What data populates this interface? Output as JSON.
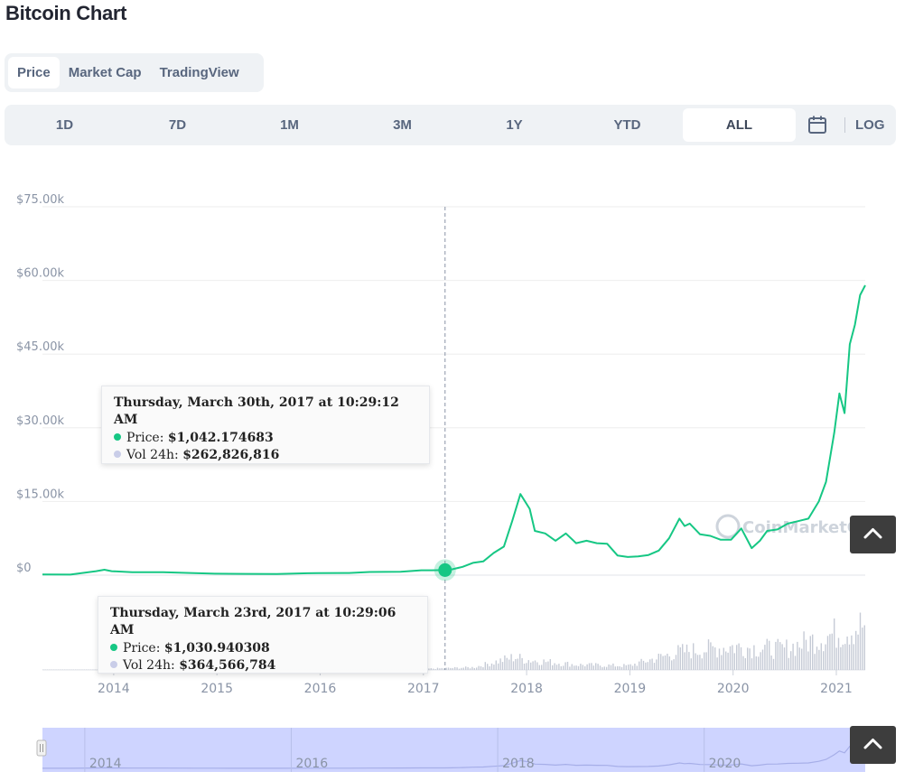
{
  "page": {
    "title": "Bitcoin Chart"
  },
  "chart_tabs": [
    {
      "label": "Price",
      "active": true
    },
    {
      "label": "Market Cap",
      "active": false
    },
    {
      "label": "TradingView",
      "active": false
    }
  ],
  "ranges": [
    {
      "label": "1D",
      "active": false
    },
    {
      "label": "7D",
      "active": false
    },
    {
      "label": "1M",
      "active": false
    },
    {
      "label": "3M",
      "active": false
    },
    {
      "label": "1Y",
      "active": false
    },
    {
      "label": "YTD",
      "active": false
    },
    {
      "label": "ALL",
      "active": true
    }
  ],
  "log_label": "LOG",
  "icons": {
    "calendar": "calendar-icon",
    "scroll_top": "chevron-up-icon",
    "navigator_handle": "navigator-handle-icon",
    "watermark": "coinmarketcap-logo-icon"
  },
  "colors": {
    "accent": "#16c784",
    "volume": "#c6cbd6",
    "navigator_fill": "#c5ccff",
    "grid": "#eeeeee"
  },
  "watermark": "CoinMarketCap",
  "tooltips": [
    {
      "title": "Thursday, March 30th, 2017 at 10:29:12 AM",
      "price_label": "Price:",
      "price": "$1,042.174683",
      "vol_label": "Vol 24h:",
      "vol": "$262,826,816"
    },
    {
      "title": "Thursday, March 23rd, 2017 at 10:29:06 AM",
      "price_label": "Price:",
      "price": "$1,030.940308",
      "vol_label": "Vol 24h:",
      "vol": "$364,566,784"
    }
  ],
  "chart_data": {
    "type": "line",
    "title": "Bitcoin Chart",
    "series": [
      {
        "name": "Price",
        "x": [
          2013.33,
          2013.6,
          2013.85,
          2013.93,
          2014.0,
          2014.2,
          2014.5,
          2014.8,
          2015.0,
          2015.3,
          2015.6,
          2015.9,
          2016.0,
          2016.3,
          2016.5,
          2016.8,
          2017.0,
          2017.1,
          2017.23,
          2017.3,
          2017.4,
          2017.5,
          2017.6,
          2017.7,
          2017.8,
          2017.88,
          2017.96,
          2018.05,
          2018.1,
          2018.2,
          2018.3,
          2018.4,
          2018.5,
          2018.6,
          2018.7,
          2018.8,
          2018.9,
          2019.0,
          2019.1,
          2019.2,
          2019.3,
          2019.4,
          2019.5,
          2019.55,
          2019.6,
          2019.7,
          2019.8,
          2019.9,
          2020.0,
          2020.1,
          2020.2,
          2020.28,
          2020.35,
          2020.45,
          2020.55,
          2020.65,
          2020.75,
          2020.85,
          2020.92,
          2021.0,
          2021.05,
          2021.1,
          2021.15,
          2021.2,
          2021.25,
          2021.3
        ],
        "values": [
          120,
          110,
          800,
          1100,
          800,
          600,
          580,
          400,
          300,
          260,
          240,
          380,
          430,
          450,
          650,
          700,
          1000,
          1000,
          1031,
          1200,
          1700,
          2500,
          2800,
          4500,
          5800,
          11000,
          16500,
          13500,
          9000,
          8500,
          7000,
          8500,
          6500,
          7000,
          6500,
          6400,
          4000,
          3700,
          3800,
          4100,
          5000,
          7500,
          11500,
          10000,
          10500,
          8300,
          8000,
          7200,
          7200,
          9500,
          5500,
          7000,
          9000,
          9300,
          10500,
          11000,
          11500,
          15000,
          19000,
          29000,
          37000,
          33000,
          47000,
          51000,
          57000,
          59000
        ],
        "color": "#16c784"
      },
      {
        "name": "Vol 24h",
        "note": "volume shown as relative bars under the price line",
        "x": [
          2017.0,
          2017.5,
          2017.9,
          2018.0,
          2018.5,
          2019.0,
          2019.5,
          2020.0,
          2020.5,
          2021.0,
          2021.25
        ],
        "values": [
          0.02,
          0.05,
          0.25,
          0.2,
          0.1,
          0.08,
          0.35,
          0.45,
          0.4,
          0.7,
          0.85
        ]
      }
    ],
    "ylabels": [
      "$0",
      "$15.00k",
      "$30.00k",
      "$45.00k",
      "$60.00k",
      "$75.00k"
    ],
    "yticks": [
      0,
      15000,
      30000,
      45000,
      60000,
      75000
    ],
    "ylim": [
      0,
      75000
    ],
    "xlim": [
      2013.33,
      2021.3
    ],
    "xticks": [
      "2014",
      "2015",
      "2016",
      "2017",
      "2018",
      "2019",
      "2020",
      "2021"
    ],
    "navigator_ticks": [
      "2014",
      "2016",
      "2018",
      "2020"
    ],
    "highlight": {
      "x": 2017.23,
      "value": 1031
    },
    "grid": true,
    "xlabel": "",
    "ylabel": ""
  }
}
